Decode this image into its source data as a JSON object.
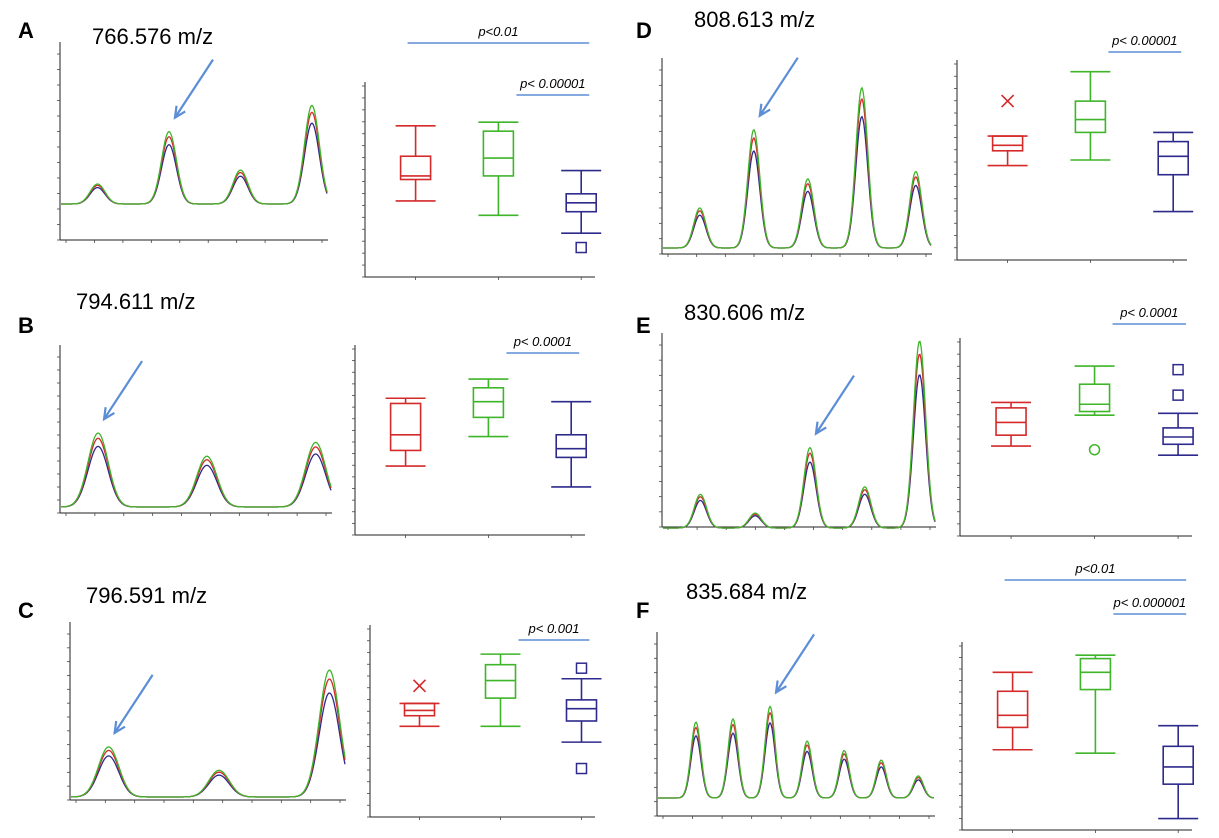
{
  "colors": {
    "group1": "#d42a2a",
    "group2": "#3fb52a",
    "group3": "#2e2a8c",
    "arrow": "#5b8ed6",
    "sig": "#5b8ed6"
  },
  "chart_data": [
    {
      "panel": "A",
      "mz_label": "766.576 m/z",
      "type": "line+box",
      "spectrum": {
        "peaks": [
          0.13,
          0.47,
          0.22,
          0.64
        ],
        "arrow_target_peak": 1
      },
      "box_ylim": [
        0,
        100
      ],
      "groups": [
        {
          "color": "group1",
          "min": 38,
          "q1": 50,
          "median": 52,
          "q3": 63,
          "max": 80,
          "outliers": []
        },
        {
          "color": "group2",
          "min": 30,
          "q1": 52,
          "median": 62,
          "q3": 77,
          "max": 82,
          "outliers": []
        },
        {
          "color": "group3",
          "min": 20,
          "q1": 32,
          "median": 37,
          "q3": 42,
          "max": 55,
          "outliers": [
            {
              "v": 12,
              "m": "square"
            }
          ]
        }
      ],
      "significance": [
        {
          "label": "p<0.01",
          "from": 1,
          "to": 3,
          "level": 1
        },
        {
          "label": "p< 0.00001",
          "from": 2.5,
          "to": 3,
          "level": 0
        }
      ]
    },
    {
      "panel": "B",
      "mz_label": "794.611 m/z",
      "type": "line+box",
      "spectrum": {
        "peaks": [
          0.48,
          0.33,
          0.42
        ],
        "arrow_target_peak": 0
      },
      "box_ylim": [
        0,
        100
      ],
      "groups": [
        {
          "color": "group1",
          "min": 35,
          "q1": 44,
          "median": 53,
          "q3": 71,
          "max": 74,
          "outliers": []
        },
        {
          "color": "group2",
          "min": 52,
          "q1": 63,
          "median": 72,
          "q3": 80,
          "max": 85,
          "outliers": []
        },
        {
          "color": "group3",
          "min": 23,
          "q1": 40,
          "median": 45,
          "q3": 53,
          "max": 72,
          "outliers": []
        }
      ],
      "significance": [
        {
          "label": "p< 0.0001",
          "from": 2.5,
          "to": 3,
          "level": 0
        }
      ]
    },
    {
      "panel": "C",
      "mz_label": "796.591 m/z",
      "type": "line+box",
      "spectrum": {
        "peaks": [
          0.3,
          0.16,
          0.76
        ],
        "arrow_target_peak": 0
      },
      "box_ylim": [
        0,
        100
      ],
      "groups": [
        {
          "color": "group1",
          "min": 47,
          "q1": 53,
          "median": 56,
          "q3": 60,
          "max": 60,
          "outliers": [
            {
              "v": 70,
              "m": "x"
            }
          ]
        },
        {
          "color": "group2",
          "min": 47,
          "q1": 63,
          "median": 73,
          "q3": 82,
          "max": 88,
          "outliers": []
        },
        {
          "color": "group3",
          "min": 38,
          "q1": 50,
          "median": 57,
          "q3": 62,
          "max": 74,
          "outliers": [
            {
              "v": 80,
              "m": "square"
            },
            {
              "v": 23,
              "m": "square"
            }
          ]
        }
      ],
      "significance": [
        {
          "label": "p< 0.001",
          "from": 2.5,
          "to": 3,
          "level": 0
        }
      ]
    },
    {
      "panel": "D",
      "mz_label": "808.613 m/z",
      "type": "line+box",
      "spectrum": {
        "peaks": [
          0.22,
          0.65,
          0.38,
          0.88,
          0.42
        ],
        "arrow_target_peak": 1
      },
      "box_ylim": [
        0,
        100
      ],
      "groups": [
        {
          "color": "group1",
          "min": 47,
          "q1": 55,
          "median": 58,
          "q3": 63,
          "max": 63,
          "outliers": [
            {
              "v": 82,
              "m": "x"
            }
          ]
        },
        {
          "color": "group2",
          "min": 50,
          "q1": 65,
          "median": 72,
          "q3": 82,
          "max": 98,
          "outliers": []
        },
        {
          "color": "group3",
          "min": 22,
          "q1": 42,
          "median": 52,
          "q3": 60,
          "max": 65,
          "outliers": []
        }
      ],
      "significance": [
        {
          "label": "p< 0.00001",
          "from": 2.5,
          "to": 3,
          "level": 0
        }
      ]
    },
    {
      "panel": "E",
      "mz_label": "830.606 m/z",
      "type": "line+box",
      "spectrum": {
        "peaks": [
          0.18,
          0.08,
          0.43,
          0.22,
          1.0
        ],
        "arrow_target_peak": 2
      },
      "box_ylim": [
        0,
        100
      ],
      "groups": [
        {
          "color": "group1",
          "min": 45,
          "q1": 51,
          "median": 58,
          "q3": 66,
          "max": 69,
          "outliers": []
        },
        {
          "color": "group2",
          "min": 62,
          "q1": 64,
          "median": 68,
          "q3": 79,
          "max": 89,
          "outliers": [
            {
              "v": 43,
              "m": "circle"
            }
          ]
        },
        {
          "color": "group3",
          "min": 40,
          "q1": 46,
          "median": 50,
          "q3": 55,
          "max": 63,
          "outliers": [
            {
              "v": 87,
              "m": "square"
            },
            {
              "v": 73,
              "m": "square"
            }
          ]
        }
      ],
      "significance": [
        {
          "label": "p< 0.0001",
          "from": 2.5,
          "to": 3,
          "level": 0
        }
      ]
    },
    {
      "panel": "F",
      "mz_label": "835.684 m/z",
      "type": "line+box",
      "spectrum": {
        "peaks": [
          0.48,
          0.5,
          0.58,
          0.36,
          0.3,
          0.24,
          0.14
        ],
        "arrow_target_peak": 2
      },
      "box_ylim": [
        0,
        100
      ],
      "groups": [
        {
          "color": "group1",
          "min": 42,
          "q1": 55,
          "median": 62,
          "q3": 76,
          "max": 87,
          "outliers": []
        },
        {
          "color": "group2",
          "min": 40,
          "q1": 77,
          "median": 87,
          "q3": 95,
          "max": 97,
          "outliers": []
        },
        {
          "color": "group3",
          "min": 2,
          "q1": 22,
          "median": 32,
          "q3": 44,
          "max": 56,
          "outliers": []
        }
      ],
      "significance": [
        {
          "label": "p<0.01",
          "from": 1,
          "to": 3,
          "level": 1
        },
        {
          "label": "p< 0.000001",
          "from": 2.5,
          "to": 3,
          "level": 0
        }
      ]
    }
  ]
}
